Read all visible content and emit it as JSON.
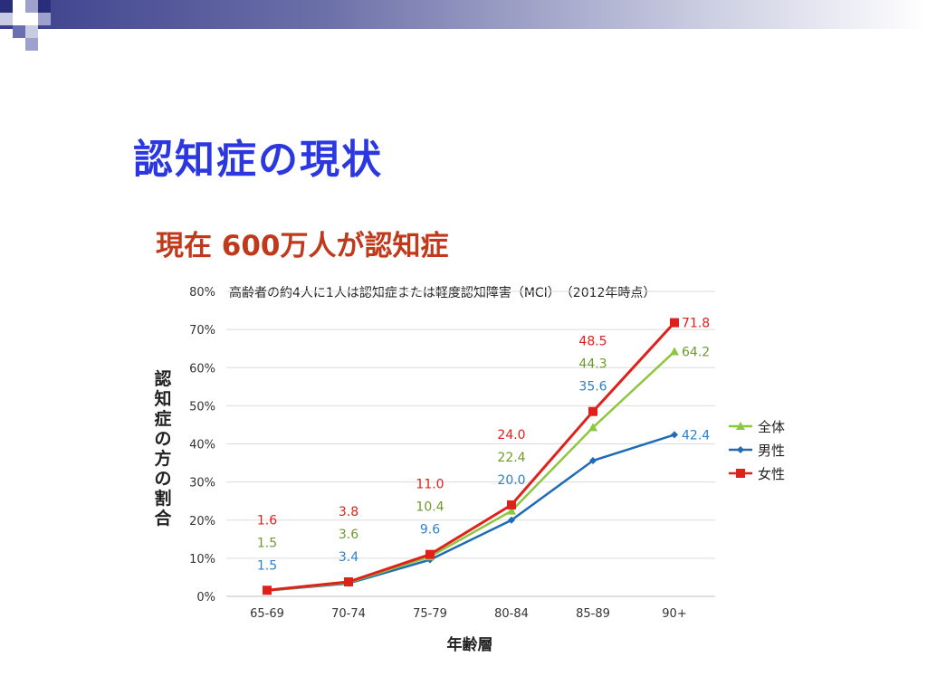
{
  "slide": {
    "title": "認知症の現状",
    "subtitle": "現在 600万人が認知症"
  },
  "colors": {
    "title": "#2b37e0",
    "subtitle": "#c0391b",
    "band": "#3b3f8c"
  },
  "chart_data": {
    "type": "line",
    "title": "高齢者の約4人に1人は認知症または軽度認知障害（MCI）　（2012年時点）",
    "xlabel": "年齢層",
    "ylabel": "認知症の方の割合",
    "categories": [
      "65-69",
      "70-74",
      "75-79",
      "80-84",
      "85-89",
      "90+"
    ],
    "ylim": [
      0,
      80
    ],
    "yticks": [
      "0%",
      "10%",
      "20%",
      "30%",
      "40%",
      "50%",
      "60%",
      "70%",
      "80%"
    ],
    "grid": true,
    "legend_position": "right",
    "series": [
      {
        "name": "全体",
        "values": [
          1.5,
          3.6,
          10.4,
          22.4,
          44.3,
          64.2
        ],
        "labels": [
          "1.5",
          "3.6",
          "10.4",
          "22.4",
          "44.3",
          "64.2"
        ],
        "color": "#8dc63f",
        "label_color": "#6e9a2f",
        "marker": "triangle"
      },
      {
        "name": "男性",
        "values": [
          1.5,
          3.4,
          9.6,
          20.0,
          35.6,
          42.4
        ],
        "labels": [
          "1.5",
          "3.4",
          "9.6",
          "20.0",
          "35.6",
          "42.4"
        ],
        "color": "#1f6bb5",
        "label_color": "#2f80c8",
        "marker": "diamond"
      },
      {
        "name": "女性",
        "values": [
          1.6,
          3.8,
          11.0,
          24.0,
          48.5,
          71.8
        ],
        "labels": [
          "1.6",
          "3.8",
          "11.0",
          "24.0",
          "48.5",
          "71.8"
        ],
        "color": "#e0201b",
        "label_color": "#e0201b",
        "marker": "square"
      }
    ]
  }
}
